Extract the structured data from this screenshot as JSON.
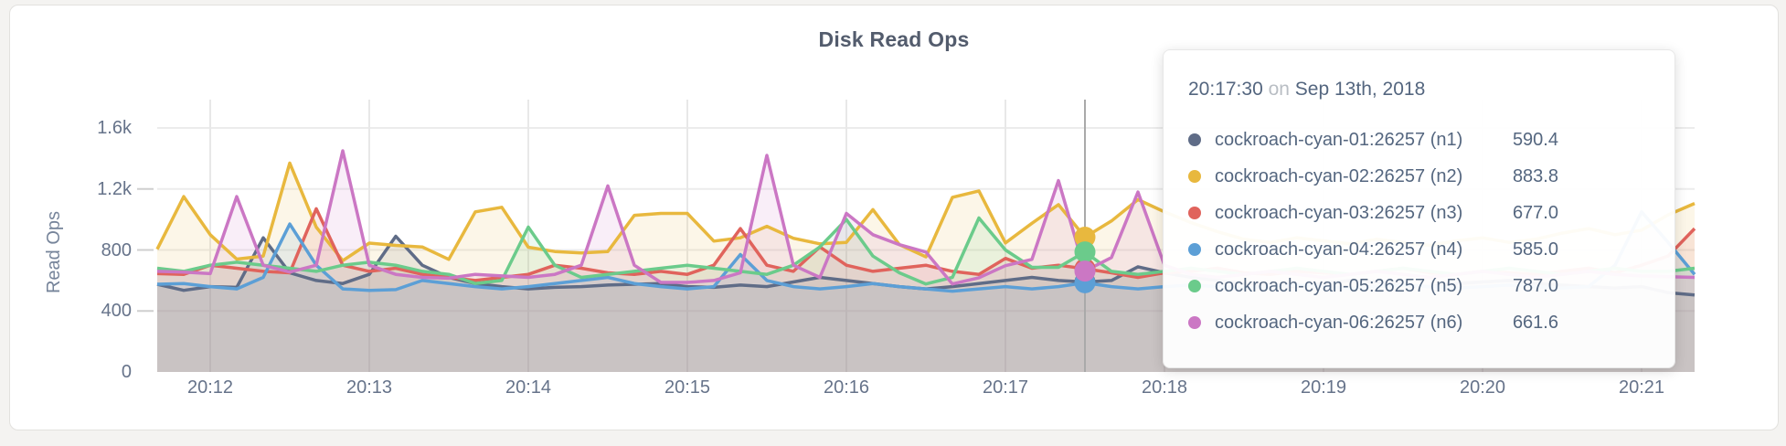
{
  "card": {
    "title": "Disk Read Ops"
  },
  "axis": {
    "y_label": "Read Ops"
  },
  "tooltip": {
    "time": "20:17:30",
    "on_word": "on",
    "date": "Sep 13th, 2018",
    "rows": [
      {
        "label": "cockroach-cyan-01:26257 (n1)",
        "value": "590.4"
      },
      {
        "label": "cockroach-cyan-02:26257 (n2)",
        "value": "883.8"
      },
      {
        "label": "cockroach-cyan-03:26257 (n3)",
        "value": "677.0"
      },
      {
        "label": "cockroach-cyan-04:26257 (n4)",
        "value": "585.0"
      },
      {
        "label": "cockroach-cyan-05:26257 (n5)",
        "value": "787.0"
      },
      {
        "label": "cockroach-cyan-06:26257 (n6)",
        "value": "661.6"
      }
    ]
  },
  "chart_data": {
    "type": "area",
    "title": "Disk Read Ops",
    "ylabel": "Read Ops",
    "xlabel": "",
    "ylim": [
      0,
      1600
    ],
    "grid": true,
    "x_start_sec": -20,
    "x_step_sec": 10,
    "x_ticks": [
      {
        "t": 0,
        "label": "20:12"
      },
      {
        "t": 60,
        "label": "20:13"
      },
      {
        "t": 120,
        "label": "20:14"
      },
      {
        "t": 180,
        "label": "20:15"
      },
      {
        "t": 240,
        "label": "20:16"
      },
      {
        "t": 300,
        "label": "20:17"
      },
      {
        "t": 360,
        "label": "20:18"
      },
      {
        "t": 420,
        "label": "20:19"
      },
      {
        "t": 480,
        "label": "20:20"
      },
      {
        "t": 540,
        "label": "20:21"
      }
    ],
    "y_ticks": [
      {
        "v": 0,
        "label": "0"
      },
      {
        "v": 400,
        "label": "400"
      },
      {
        "v": 800,
        "label": "800"
      },
      {
        "v": 1200,
        "label": "1.2k"
      },
      {
        "v": 1600,
        "label": "1.6k"
      }
    ],
    "hover": {
      "t": 330,
      "label": "20:17:30"
    },
    "series": [
      {
        "name": "cockroach-cyan-01:26257 (n1)",
        "node": "n1",
        "color": "#5f6c87",
        "hover_value": 590.4,
        "values": [
          575,
          535,
          560,
          555,
          880,
          650,
          600,
          580,
          640,
          890,
          700,
          620,
          580,
          560,
          545,
          555,
          560,
          570,
          575,
          580,
          560,
          555,
          570,
          560,
          590,
          620,
          600,
          580,
          560,
          545,
          560,
          580,
          600,
          620,
          600,
          590.4,
          600,
          690,
          650,
          620,
          600,
          580,
          570,
          560,
          580,
          600,
          590,
          570,
          560,
          580,
          590,
          600,
          580,
          570,
          560,
          550,
          560,
          520,
          505
        ]
      },
      {
        "name": "cockroach-cyan-02:26257 (n2)",
        "node": "n2",
        "color": "#e8b83e",
        "hover_value": 883.8,
        "values": [
          805,
          1150,
          900,
          740,
          760,
          1370,
          950,
          730,
          845,
          830,
          820,
          738,
          1050,
          1080,
          818,
          790,
          780,
          790,
          1027,
          1040,
          1040,
          858,
          880,
          955,
          877,
          840,
          850,
          1065,
          835,
          755,
          1145,
          1187,
          846,
          975,
          1097,
          883.8,
          990,
          1130,
          1050,
          980,
          920,
          870,
          850,
          880,
          860,
          840,
          870,
          850,
          830,
          860,
          880,
          850,
          870,
          910,
          940,
          900,
          930,
          1030,
          1105
        ]
      },
      {
        "name": "cockroach-cyan-03:26257 (n3)",
        "node": "n3",
        "color": "#e0635c",
        "hover_value": 677.0,
        "values": [
          645,
          640,
          700,
          680,
          660,
          650,
          1070,
          700,
          660,
          680,
          640,
          620,
          600,
          620,
          640,
          700,
          680,
          650,
          640,
          660,
          640,
          700,
          940,
          700,
          660,
          820,
          700,
          660,
          680,
          700,
          660,
          640,
          745,
          680,
          700,
          677,
          650,
          620,
          650,
          660,
          680,
          650,
          640,
          660,
          650,
          640,
          660,
          680,
          650,
          640,
          660,
          650,
          640,
          660,
          680,
          650,
          700,
          760,
          940
        ]
      },
      {
        "name": "cockroach-cyan-04:26257 (n4)",
        "node": "n4",
        "color": "#5c9fd6",
        "hover_value": 585.0,
        "values": [
          575,
          580,
          560,
          545,
          620,
          970,
          700,
          545,
          535,
          540,
          600,
          580,
          560,
          545,
          560,
          580,
          600,
          620,
          580,
          560,
          545,
          560,
          770,
          600,
          560,
          545,
          560,
          580,
          560,
          545,
          530,
          545,
          560,
          545,
          560,
          585,
          560,
          545,
          560,
          570,
          560,
          550,
          560,
          570,
          560,
          550,
          560,
          570,
          560,
          550,
          560,
          570,
          560,
          550,
          560,
          700,
          1050,
          850,
          640
        ]
      },
      {
        "name": "cockroach-cyan-05:26257 (n5)",
        "node": "n5",
        "color": "#6bcb8b",
        "hover_value": 787.0,
        "values": [
          680,
          660,
          700,
          720,
          700,
          680,
          660,
          700,
          720,
          700,
          660,
          640,
          580,
          600,
          950,
          700,
          620,
          640,
          660,
          680,
          700,
          680,
          660,
          640,
          700,
          820,
          1000,
          760,
          650,
          577,
          620,
          1010,
          800,
          686,
          686,
          787,
          660,
          640,
          660,
          680,
          660,
          640,
          660,
          680,
          660,
          640,
          660,
          680,
          660,
          640,
          660,
          680,
          660,
          640,
          660,
          680,
          660,
          660,
          680
        ]
      },
      {
        "name": "cockroach-cyan-06:26257 (n6)",
        "node": "n6",
        "color": "#cb77c4",
        "hover_value": 661.6,
        "values": [
          660,
          655,
          645,
          1150,
          700,
          655,
          700,
          1450,
          700,
          640,
          620,
          615,
          640,
          630,
          620,
          640,
          700,
          1220,
          700,
          587,
          587,
          600,
          650,
          1420,
          700,
          620,
          1040,
          900,
          835,
          786,
          577,
          618,
          697,
          738,
          1255,
          661.6,
          750,
          1180,
          700,
          640,
          620,
          640,
          660,
          640,
          620,
          640,
          660,
          640,
          620,
          640,
          660,
          640,
          620,
          640,
          660,
          640,
          630,
          625,
          620
        ]
      }
    ]
  }
}
